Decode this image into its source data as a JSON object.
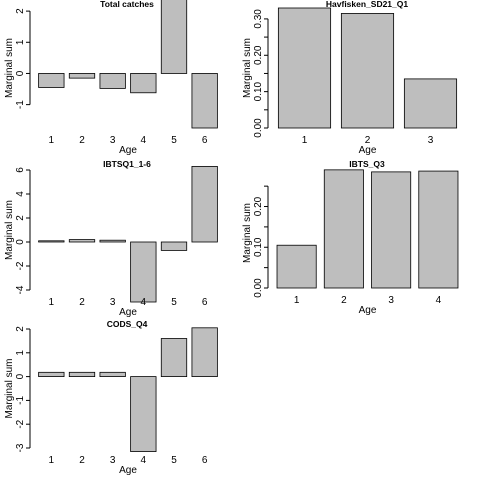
{
  "chart_data": [
    {
      "type": "bar",
      "title": "Total catches",
      "xlabel": "Age",
      "ylabel": "Marginal sum",
      "categories": [
        "1",
        "2",
        "3",
        "4",
        "5",
        "6"
      ],
      "values": [
        -0.45,
        -0.15,
        -0.48,
        -0.62,
        2.45,
        -1.75
      ],
      "ylim": [
        -1.75,
        2.1
      ],
      "yticks": [
        -1,
        0,
        1,
        2
      ],
      "ytick_labels": [
        "-1",
        "0",
        "1",
        "2"
      ]
    },
    {
      "type": "bar",
      "title": "Havfisken_SD21_Q1",
      "xlabel": "Age",
      "ylabel": "Marginal sum",
      "categories": [
        "1",
        "2",
        "3"
      ],
      "values": [
        0.33,
        0.315,
        0.135
      ],
      "ylim": [
        0,
        0.33
      ],
      "yticks": [
        0.0,
        0.05,
        0.1,
        0.15,
        0.2,
        0.25,
        0.3
      ],
      "ytick_labels": [
        "0.00",
        "",
        "0.10",
        "",
        "0.20",
        "",
        "0.30"
      ]
    },
    {
      "type": "bar",
      "title": "IBTSQ1_1-6",
      "xlabel": "Age",
      "ylabel": "Marginal sum",
      "categories": [
        "1",
        "2",
        "3",
        "4",
        "5",
        "6"
      ],
      "values": [
        0.1,
        0.2,
        0.15,
        -5.0,
        -0.7,
        6.3
      ],
      "ylim": [
        -4.0,
        6.0
      ],
      "yticks": [
        -4,
        -2,
        0,
        2,
        4,
        6
      ],
      "ytick_labels": [
        "-4",
        "-2",
        "0",
        "2",
        "4",
        "6"
      ]
    },
    {
      "type": "bar",
      "title": "IBTS_Q3",
      "xlabel": "Age",
      "ylabel": "Marginal sum",
      "categories": [
        "1",
        "2",
        "3",
        "4"
      ],
      "values": [
        0.105,
        0.29,
        0.285,
        0.287
      ],
      "ylim": [
        0,
        0.27
      ],
      "yticks": [
        0.0,
        0.05,
        0.1,
        0.15,
        0.2,
        0.25
      ],
      "ytick_labels": [
        "0.00",
        "",
        "0.10",
        "",
        "0.20",
        ""
      ]
    },
    {
      "type": "bar",
      "title": "CODS_Q4",
      "xlabel": "Age",
      "ylabel": "Marginal sum",
      "categories": [
        "1",
        "2",
        "3",
        "4",
        "5",
        "6"
      ],
      "values": [
        0.18,
        0.18,
        0.18,
        -3.15,
        1.6,
        2.05
      ],
      "ylim": [
        -3,
        2
      ],
      "yticks": [
        -3,
        -2,
        -1,
        0,
        1,
        2
      ],
      "ytick_labels": [
        "-3",
        "-2",
        "-1",
        "0",
        "1",
        "2"
      ]
    }
  ]
}
